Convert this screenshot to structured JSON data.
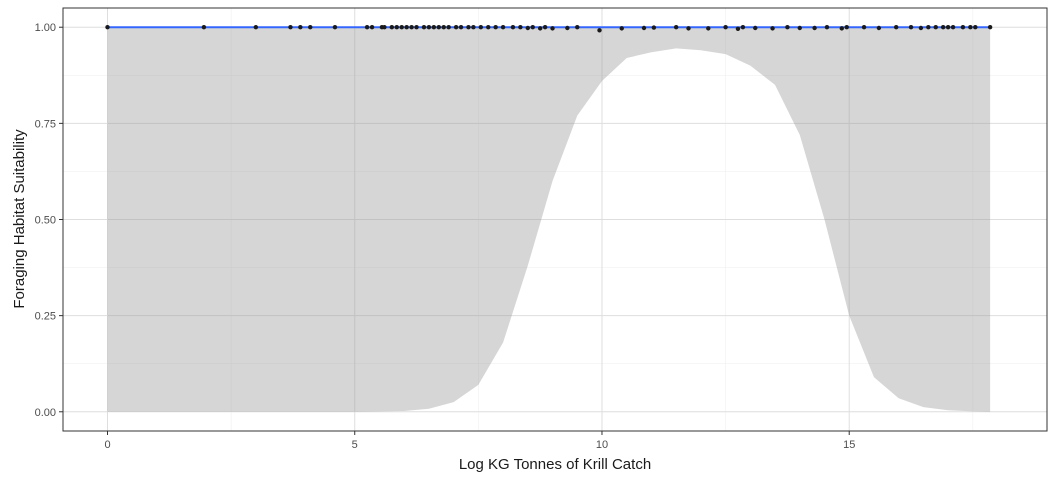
{
  "chart_data": {
    "type": "line",
    "title": "",
    "xlabel": "Log KG Tonnes of Krill Catch",
    "ylabel": "Foraging Habitat Suitability",
    "xlim": [
      -0.9,
      19.0
    ],
    "ylim": [
      -0.05,
      1.05
    ],
    "x_ticks": [
      0,
      5,
      10,
      15
    ],
    "x_tick_labels": [
      "0",
      "5",
      "10",
      "15"
    ],
    "y_ticks": [
      0.0,
      0.25,
      0.5,
      0.75,
      1.0
    ],
    "y_tick_labels": [
      "0.00",
      "0.25",
      "0.50",
      "0.75",
      "1.00"
    ],
    "grid": true,
    "colors": {
      "line": "#3366ff",
      "ribbon": "#999999",
      "points": "#1a1a1a",
      "panel_border": "#333333",
      "grid_major": "#dedede",
      "grid_minor": "#f0f0f0"
    },
    "fit_line": {
      "x": [
        0,
        17.85
      ],
      "y": [
        1.0,
        1.0
      ]
    },
    "ribbon": {
      "x": [
        0,
        2,
        4,
        5,
        6,
        6.5,
        7,
        7.5,
        8,
        8.5,
        9,
        9.5,
        10,
        10.5,
        11,
        11.5,
        12,
        12.5,
        13,
        13.5,
        14,
        14.5,
        15,
        15.5,
        16,
        16.5,
        17,
        17.5,
        17.85
      ],
      "lower": [
        0.0,
        0.0,
        0.0,
        0.0,
        0.002,
        0.008,
        0.025,
        0.07,
        0.18,
        0.38,
        0.6,
        0.77,
        0.86,
        0.92,
        0.935,
        0.945,
        0.94,
        0.93,
        0.9,
        0.85,
        0.72,
        0.5,
        0.25,
        0.09,
        0.035,
        0.012,
        0.004,
        0.001,
        0.0
      ],
      "upper": [
        1.0,
        1.0,
        1.0,
        1.0,
        1.0,
        1.0,
        1.0,
        1.0,
        1.0,
        1.0,
        1.0,
        1.0,
        1.0,
        1.0,
        1.0,
        1.0,
        1.0,
        1.0,
        1.0,
        1.0,
        1.0,
        1.0,
        1.0,
        1.0,
        1.0,
        1.0,
        1.0,
        1.0,
        1.0
      ]
    },
    "points": {
      "x": [
        0,
        1.95,
        3.0,
        3.7,
        3.9,
        4.1,
        4.6,
        5.25,
        5.35,
        5.55,
        5.6,
        5.75,
        5.85,
        5.95,
        6.05,
        6.15,
        6.25,
        6.4,
        6.5,
        6.6,
        6.7,
        6.8,
        6.9,
        7.05,
        7.15,
        7.3,
        7.4,
        7.55,
        7.7,
        7.85,
        8.0,
        8.2,
        8.35,
        8.5,
        8.6,
        8.75,
        8.85,
        9.0,
        9.3,
        9.5,
        9.95,
        10.4,
        10.85,
        11.05,
        11.5,
        11.75,
        12.15,
        12.5,
        12.75,
        12.85,
        13.1,
        13.45,
        13.75,
        14.0,
        14.3,
        14.55,
        14.85,
        14.95,
        15.3,
        15.6,
        15.95,
        16.25,
        16.45,
        16.6,
        16.75,
        16.9,
        17.0,
        17.1,
        17.3,
        17.45,
        17.55,
        17.85
      ],
      "y": [
        1.0,
        1.0,
        1.0,
        1.0,
        1.0,
        1.0,
        1.0,
        1.0,
        1.0,
        1.0,
        1.0,
        1.0,
        1.0,
        1.0,
        1.0,
        1.0,
        1.0,
        1.0,
        1.0,
        1.0,
        1.0,
        1.0,
        1.0,
        1.0,
        1.0,
        1.0,
        1.0,
        1.0,
        1.0,
        1.0,
        1.0,
        1.0,
        1.0,
        0.998,
        1.0,
        0.997,
        1.0,
        0.997,
        0.998,
        1.0,
        0.992,
        0.997,
        0.998,
        0.999,
        1.0,
        0.997,
        0.997,
        1.0,
        0.996,
        1.0,
        0.998,
        0.997,
        1.0,
        0.998,
        0.998,
        1.0,
        0.997,
        1.0,
        1.0,
        0.998,
        1.0,
        1.0,
        0.998,
        1.0,
        1.0,
        1.0,
        1.0,
        1.0,
        1.0,
        1.0,
        1.0,
        1.0
      ]
    }
  }
}
